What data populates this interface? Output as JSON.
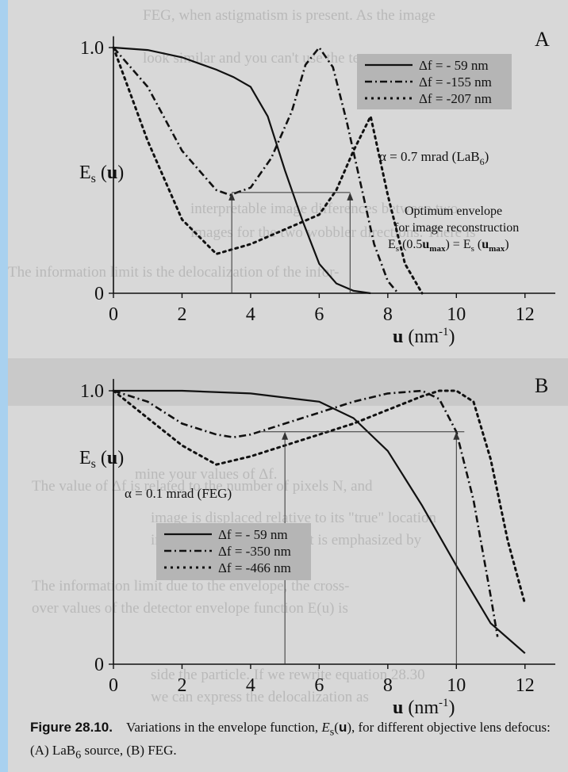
{
  "figure_caption": {
    "label": "Figure 28.10.",
    "text": "Variations in the envelope function, E_s(u), for different objective lens defocus: (A) LaB_6 source, (B) FEG."
  },
  "colors": {
    "background_border": "#a9d1ef",
    "page": "#d8d8d8",
    "legend_box": "#b5b5b5"
  },
  "chart_data": [
    {
      "panel": "A",
      "type": "line",
      "ylabel": "E_s (u)",
      "xlabel": "u (nm^-1)",
      "xlim": [
        0,
        13
      ],
      "ylim": [
        0,
        1.0
      ],
      "xticks": [
        0,
        2,
        4,
        6,
        8,
        10,
        12
      ],
      "yticks": [
        0,
        1.0
      ],
      "grid": false,
      "legend_position": "top-right",
      "annotations": [
        "α = 0.7 mrad (LaB6)",
        "Optimum envelope",
        "for image reconstruction",
        "Es (0.5umax) = Es (umax)"
      ],
      "series": [
        {
          "name": "Δf = -  59 nm",
          "style": "solid",
          "x": [
            0,
            1,
            2,
            3,
            3.5,
            4,
            4.5,
            5,
            5.5,
            6,
            6.5,
            7,
            7.5
          ],
          "y": [
            1.0,
            0.99,
            0.96,
            0.91,
            0.88,
            0.84,
            0.72,
            0.5,
            0.3,
            0.12,
            0.04,
            0.01,
            0.0
          ]
        },
        {
          "name": "Δf = -155 nm",
          "style": "dash-dot",
          "x": [
            0,
            1,
            2,
            3,
            3.4,
            4,
            4.6,
            5.2,
            5.6,
            6,
            6.4,
            6.8,
            7.2,
            7.6,
            8,
            8.3
          ],
          "y": [
            1.0,
            0.84,
            0.58,
            0.42,
            0.4,
            0.43,
            0.55,
            0.74,
            0.93,
            1.0,
            0.92,
            0.7,
            0.45,
            0.2,
            0.05,
            0.0
          ]
        },
        {
          "name": "Δf = -207 nm",
          "style": "dotted",
          "x": [
            0,
            1,
            2,
            3,
            4,
            5,
            6,
            6.5,
            7,
            7.5,
            8,
            8.5,
            9
          ],
          "y": [
            1.0,
            0.62,
            0.3,
            0.16,
            0.2,
            0.26,
            0.32,
            0.42,
            0.58,
            0.72,
            0.4,
            0.12,
            0.0
          ]
        }
      ],
      "envelope_markers": [
        {
          "u_max": 6.9,
          "half_u": 3.45,
          "level": 0.41
        }
      ]
    },
    {
      "panel": "B",
      "type": "line",
      "ylabel": "E_s (u)",
      "xlabel": "u (nm^-1)",
      "xlim": [
        0,
        13
      ],
      "ylim": [
        0,
        1.0
      ],
      "xticks": [
        0,
        2,
        4,
        6,
        8,
        10,
        12
      ],
      "yticks": [
        0,
        1.0
      ],
      "grid": false,
      "legend_position": "bottom-left",
      "annotations": [
        "α = 0.1 mrad (FEG)"
      ],
      "series": [
        {
          "name": "Δf = -  59 nm",
          "style": "solid",
          "x": [
            0,
            2,
            4,
            6,
            7,
            8,
            9,
            10,
            11,
            12
          ],
          "y": [
            1.0,
            1.0,
            0.99,
            0.96,
            0.9,
            0.78,
            0.58,
            0.36,
            0.15,
            0.04
          ]
        },
        {
          "name": "Δf = -350 nm",
          "style": "dash-dot",
          "x": [
            0,
            1,
            2,
            3,
            3.5,
            4,
            5,
            6,
            7,
            8,
            9,
            9.5,
            10,
            10.5,
            11,
            11.2
          ],
          "y": [
            1.0,
            0.96,
            0.88,
            0.84,
            0.83,
            0.84,
            0.88,
            0.92,
            0.96,
            0.99,
            1.0,
            0.97,
            0.85,
            0.6,
            0.25,
            0.1
          ]
        },
        {
          "name": "Δf = -466 nm",
          "style": "dotted",
          "x": [
            0,
            1,
            2,
            3,
            4,
            5,
            6,
            7,
            8,
            9,
            9.5,
            10,
            10.5,
            11,
            11.5,
            12
          ],
          "y": [
            1.0,
            0.9,
            0.8,
            0.73,
            0.76,
            0.8,
            0.84,
            0.88,
            0.93,
            0.98,
            1.0,
            1.0,
            0.96,
            0.75,
            0.45,
            0.22
          ]
        }
      ],
      "envelope_markers": [
        {
          "u_max": 10.0,
          "half_u": 5.0,
          "level": 0.85
        }
      ]
    }
  ]
}
